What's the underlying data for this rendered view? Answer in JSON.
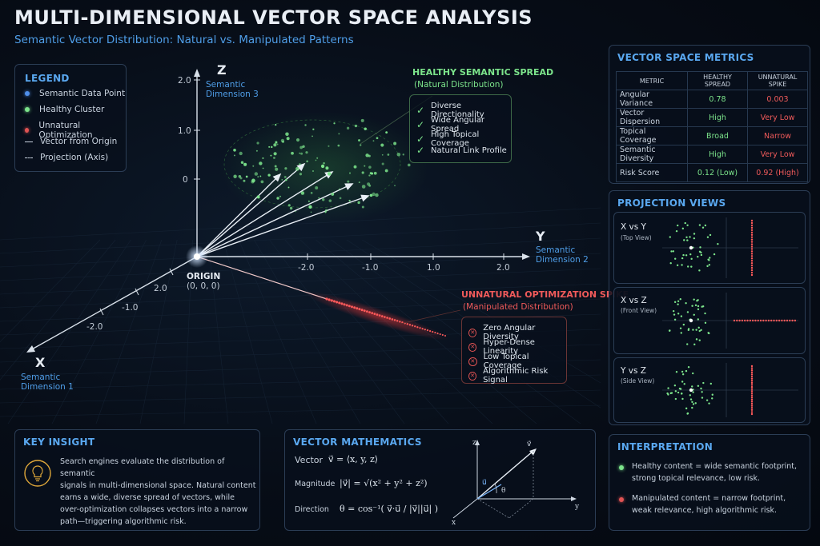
{
  "header": {
    "title": "MULTI-DIMENSIONAL VECTOR SPACE ANALYSIS",
    "subtitle": "Semantic Vector Distribution: Natural vs. Manipulated Patterns"
  },
  "legend": {
    "title": "LEGEND",
    "items": [
      {
        "label": "Semantic Data Point",
        "color": "#4f8fea"
      },
      {
        "label": "Healthy Cluster",
        "color": "#7ce48b"
      },
      {
        "label": "Unnatural Optimization",
        "color": "#e05353"
      },
      {
        "label": "Vector from Origin"
      },
      {
        "label": "Projection (Axis)"
      }
    ]
  },
  "plot": {
    "z_axis": {
      "name": "Z",
      "sub1": "Semantic",
      "sub2": "Dimension 3",
      "ticks": [
        "2.0",
        "1.0",
        "0"
      ]
    },
    "y_axis": {
      "name": "Y",
      "sub1": "Semantic",
      "sub2": "Dimension 2",
      "ticks": [
        "-2.0",
        "-1.0",
        "1.0",
        "2.0"
      ]
    },
    "x_axis": {
      "name": "X",
      "sub1": "Semantic",
      "sub2": "Dimension 1",
      "ticks": [
        "2.0",
        "-1.0",
        "-2.0"
      ]
    },
    "origin": {
      "label": "ORIGIN",
      "coords": "(0, 0, 0)"
    },
    "healthy": {
      "title": "HEALTHY SEMANTIC SPREAD",
      "sub": "(Natural Distribution)",
      "items": [
        "Diverse Directionality",
        "Wide Angular Spread",
        "High Topical Coverage",
        "Natural Link Profile"
      ]
    },
    "unnatural": {
      "title": "UNNATURAL OPTIMIZATION SPIKE",
      "sub": "(Manipulated Distribution)",
      "items": [
        "Zero Angular Diversity",
        "Hyper-Dense Linearity",
        "Low Topical Coverage",
        "Algorithmic Risk Signal"
      ]
    }
  },
  "metrics": {
    "title": "VECTOR SPACE METRICS",
    "headers": [
      "METRIC",
      "HEALTHY SPREAD",
      "UNNATURAL SPIKE"
    ],
    "rows": [
      {
        "metric": "Angular Variance",
        "healthy": "0.78",
        "unnatural": "0.003"
      },
      {
        "metric": "Vector Dispersion",
        "healthy": "High",
        "unnatural": "Very Low"
      },
      {
        "metric": "Topical Coverage",
        "healthy": "Broad",
        "unnatural": "Narrow"
      },
      {
        "metric": "Semantic Diversity",
        "healthy": "High",
        "unnatural": "Very Low"
      },
      {
        "metric": "Risk Score",
        "healthy": "0.12 (Low)",
        "unnatural": "0.92 (High)"
      }
    ]
  },
  "projections": {
    "title": "PROJECTION VIEWS",
    "views": [
      {
        "label": "X vs Y",
        "sub": "(Top View)"
      },
      {
        "label": "X vs Z",
        "sub": "(Front View)"
      },
      {
        "label": "Y vs Z",
        "sub": "(Side View)"
      }
    ]
  },
  "key_insight": {
    "title": "KEY INSIGHT",
    "lines": [
      "Search engines evaluate the distribution of semantic",
      "signals in multi-dimensional space. Natural content",
      "earns a wide, diverse spread of vectors, while",
      "over-optimization collapses vectors into a narrow",
      "path—triggering algorithmic risk."
    ]
  },
  "vector_math": {
    "title": "VECTOR MATHEMATICS",
    "vector_label": "Vector",
    "magnitude_label": "Magnitude",
    "direction_label": "Direction",
    "vector_formula": "v⃗ = ⟨x, y, z⟩",
    "magnitude_formula": "|v⃗| = √(x² + y² + z²)",
    "direction_formula": "θ = cos⁻¹( v⃗·u⃗ / |v⃗||u⃗| )",
    "diagram": {
      "z": "z",
      "y": "y",
      "x": "x",
      "v": "v⃗",
      "u": "u⃗",
      "theta": "θ"
    }
  },
  "interpretation": {
    "title": "INTERPRETATION",
    "items": [
      {
        "color": "#7ce48b",
        "line1": "Healthy content = wide semantic footprint,",
        "line2": "strong topical relevance, low risk."
      },
      {
        "color": "#e05353",
        "line1": "Manipulated content = narrow footprint,",
        "line2": "weak relevance, high algorithmic risk."
      }
    ]
  }
}
